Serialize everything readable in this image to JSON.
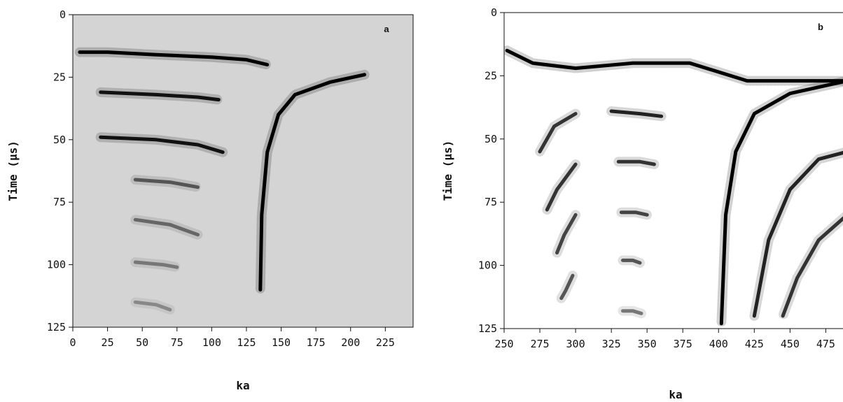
{
  "chart_data": [
    {
      "type": "heatmap",
      "panel_label": "a",
      "xlabel": "ka",
      "ylabel": "Time  (µs)",
      "xlim": [
        0,
        245
      ],
      "ylim": [
        125,
        0
      ],
      "x_ticks": [
        0,
        25,
        50,
        75,
        100,
        125,
        150,
        175,
        200,
        225
      ],
      "y_ticks": [
        0,
        25,
        50,
        75,
        100,
        125
      ],
      "background": "#d4d4d4",
      "curves": [
        {
          "name": "dark-band-18",
          "shade": "#000000",
          "points": [
            [
              5,
              15
            ],
            [
              25,
              15
            ],
            [
              60,
              16
            ],
            [
              100,
              17
            ],
            [
              125,
              18
            ],
            [
              140,
              20
            ]
          ]
        },
        {
          "name": "dark-band-34",
          "shade": "#111111",
          "points": [
            [
              20,
              31
            ],
            [
              60,
              32
            ],
            [
              90,
              33
            ],
            [
              105,
              34
            ]
          ]
        },
        {
          "name": "dark-band-50",
          "shade": "#111111",
          "points": [
            [
              20,
              49
            ],
            [
              60,
              50
            ],
            [
              90,
              52
            ],
            [
              108,
              55
            ]
          ]
        },
        {
          "name": "band-67",
          "shade": "#555555",
          "points": [
            [
              45,
              66
            ],
            [
              70,
              67
            ],
            [
              90,
              69
            ]
          ]
        },
        {
          "name": "band-84",
          "shade": "#666666",
          "points": [
            [
              45,
              82
            ],
            [
              70,
              84
            ],
            [
              90,
              88
            ]
          ]
        },
        {
          "name": "band-100",
          "shade": "#777777",
          "points": [
            [
              45,
              99
            ],
            [
              65,
              100
            ],
            [
              75,
              101
            ]
          ]
        },
        {
          "name": "band-117",
          "shade": "#888888",
          "points": [
            [
              45,
              115
            ],
            [
              60,
              116
            ],
            [
              70,
              118
            ]
          ]
        },
        {
          "name": "hook",
          "shade": "#000000",
          "points": [
            [
              210,
              24
            ],
            [
              185,
              27
            ],
            [
              160,
              32
            ],
            [
              148,
              40
            ],
            [
              140,
              55
            ],
            [
              136,
              80
            ],
            [
              135,
              110
            ]
          ]
        }
      ]
    },
    {
      "type": "heatmap",
      "panel_label": "b",
      "xlabel": "ka",
      "ylabel": "Time  (µs)",
      "xlim": [
        250,
        490
      ],
      "ylim": [
        125,
        0
      ],
      "x_ticks": [
        250,
        275,
        300,
        325,
        350,
        375,
        400,
        425,
        450,
        475
      ],
      "y_ticks": [
        0,
        25,
        50,
        75,
        100,
        125
      ],
      "background": "#ffffff",
      "curves": [
        {
          "name": "top-band",
          "shade": "#000000",
          "points": [
            [
              252,
              15
            ],
            [
              270,
              20
            ],
            [
              300,
              22
            ],
            [
              340,
              20
            ],
            [
              380,
              20
            ],
            [
              420,
              27
            ],
            [
              490,
              27
            ]
          ]
        },
        {
          "name": "band-40",
          "shade": "#222222",
          "points": [
            [
              325,
              39
            ],
            [
              345,
              40
            ],
            [
              360,
              41
            ]
          ]
        },
        {
          "name": "band-60",
          "shade": "#333333",
          "points": [
            [
              330,
              59
            ],
            [
              345,
              59
            ],
            [
              355,
              60
            ]
          ]
        },
        {
          "name": "band-80",
          "shade": "#444444",
          "points": [
            [
              332,
              79
            ],
            [
              342,
              79
            ],
            [
              350,
              80
            ]
          ]
        },
        {
          "name": "band-98",
          "shade": "#555555",
          "points": [
            [
              333,
              98
            ],
            [
              340,
              98
            ],
            [
              345,
              99
            ]
          ]
        },
        {
          "name": "band-118",
          "shade": "#777777",
          "points": [
            [
              333,
              118
            ],
            [
              340,
              118
            ],
            [
              346,
              119
            ]
          ]
        },
        {
          "name": "diag-1",
          "shade": "#333333",
          "points": [
            [
              300,
              40
            ],
            [
              285,
              45
            ],
            [
              275,
              55
            ]
          ]
        },
        {
          "name": "diag-2",
          "shade": "#333333",
          "points": [
            [
              300,
              60
            ],
            [
              287,
              70
            ],
            [
              280,
              78
            ]
          ]
        },
        {
          "name": "diag-3",
          "shade": "#444444",
          "points": [
            [
              300,
              80
            ],
            [
              292,
              88
            ],
            [
              287,
              95
            ]
          ]
        },
        {
          "name": "diag-4",
          "shade": "#555555",
          "points": [
            [
              298,
              104
            ],
            [
              293,
              110
            ],
            [
              290,
              113
            ]
          ]
        },
        {
          "name": "main-hook",
          "shade": "#000000",
          "points": [
            [
              490,
              27
            ],
            [
              450,
              32
            ],
            [
              425,
              40
            ],
            [
              412,
              55
            ],
            [
              405,
              80
            ],
            [
              402,
              123
            ]
          ]
        },
        {
          "name": "outer-hook-1",
          "shade": "#222222",
          "points": [
            [
              490,
              55
            ],
            [
              470,
              58
            ],
            [
              450,
              70
            ],
            [
              435,
              90
            ],
            [
              425,
              120
            ]
          ]
        },
        {
          "name": "outer-hook-2",
          "shade": "#333333",
          "points": [
            [
              490,
              80
            ],
            [
              470,
              90
            ],
            [
              455,
              105
            ],
            [
              445,
              120
            ]
          ]
        }
      ]
    }
  ]
}
